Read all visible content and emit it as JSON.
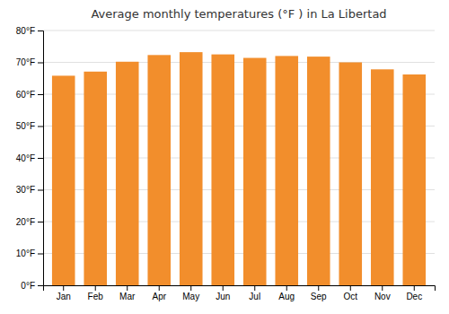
{
  "chart_data": {
    "type": "bar",
    "title": "Average monthly temperatures (°F ) in La Libertad",
    "categories": [
      "Jan",
      "Feb",
      "Mar",
      "Apr",
      "May",
      "Jun",
      "Jul",
      "Aug",
      "Sep",
      "Oct",
      "Nov",
      "Dec"
    ],
    "values": [
      65.8,
      67.1,
      70.2,
      72.3,
      73.2,
      72.5,
      71.4,
      72.0,
      71.8,
      70.0,
      67.8,
      66.2
    ],
    "ylim": [
      0,
      80
    ],
    "yticks": [
      {
        "value": 0,
        "label": "0°F"
      },
      {
        "value": 10,
        "label": "10°F"
      },
      {
        "value": 20,
        "label": "20°F"
      },
      {
        "value": 30,
        "label": "30°F"
      },
      {
        "value": 40,
        "label": "40°F"
      },
      {
        "value": 50,
        "label": "50°F"
      },
      {
        "value": 60,
        "label": "60°F"
      },
      {
        "value": 70,
        "label": "70°F"
      },
      {
        "value": 80,
        "label": "80°F"
      }
    ],
    "grid": true
  }
}
